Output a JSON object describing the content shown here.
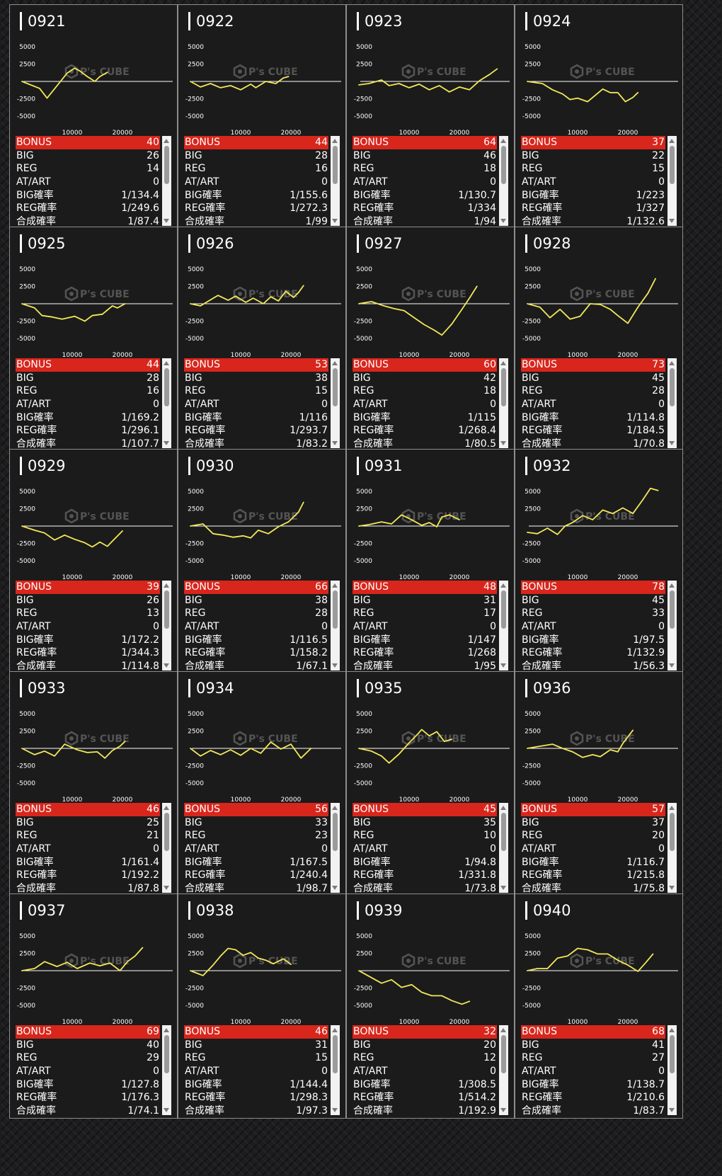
{
  "labels": {
    "bonus": "BONUS",
    "big": "BIG",
    "reg": "REG",
    "at": "AT/ART",
    "big_rate": "BIG確率",
    "reg_rate": "REG確率",
    "total_rate": "合成確率"
  },
  "watermark": "P's CUBE",
  "colors": {
    "line": "#f3e85a",
    "bonus_bar": "#d8261c",
    "panel": "#1b1b1b",
    "border": "#8d8d8d"
  },
  "chart_data": [
    {
      "type": "line",
      "title": "0921",
      "yticks": [
        5000,
        2500,
        -2500,
        -5000
      ],
      "xticks": [
        10000,
        20000
      ],
      "ylim": [
        -6500,
        6500
      ],
      "xlim": [
        0,
        30000
      ],
      "x": [
        0,
        3500,
        5000,
        7000,
        9000,
        10500,
        11500,
        13000,
        14500,
        15500,
        17000
      ],
      "y": [
        0,
        -1000,
        -2400,
        -600,
        1200,
        1900,
        1500,
        700,
        0,
        700,
        1300
      ]
    },
    {
      "type": "line",
      "title": "0922",
      "yticks": [
        5000,
        2500,
        -2500,
        -5000
      ],
      "xticks": [
        10000,
        20000
      ],
      "ylim": [
        -6500,
        6500
      ],
      "xlim": [
        0,
        30000
      ],
      "x": [
        0,
        2000,
        4000,
        6000,
        8000,
        10000,
        12000,
        13000,
        15000,
        17000,
        18500,
        19500
      ],
      "y": [
        0,
        -800,
        -300,
        -900,
        -600,
        -1200,
        -400,
        -900,
        0,
        -300,
        500,
        700
      ]
    },
    {
      "type": "line",
      "title": "0923",
      "yticks": [
        5000,
        2500,
        -2500,
        -5000
      ],
      "xticks": [
        10000,
        20000
      ],
      "ylim": [
        -6500,
        6500
      ],
      "xlim": [
        0,
        30000
      ],
      "x": [
        0,
        2000,
        4500,
        6000,
        8000,
        10000,
        12000,
        14000,
        16000,
        18000,
        20000,
        22000,
        24000,
        26000,
        27500
      ],
      "y": [
        -500,
        -300,
        200,
        -600,
        -300,
        -900,
        -400,
        -1200,
        -600,
        -1500,
        -800,
        -1200,
        100,
        1000,
        1800
      ]
    },
    {
      "type": "line",
      "title": "0924",
      "yticks": [
        5000,
        2500,
        -2500,
        -5000
      ],
      "xticks": [
        10000,
        20000
      ],
      "ylim": [
        -6500,
        6500
      ],
      "xlim": [
        0,
        30000
      ],
      "x": [
        0,
        3000,
        5000,
        7000,
        8500,
        10000,
        12000,
        13500,
        15000,
        16500,
        18000,
        19500,
        21000,
        22000
      ],
      "y": [
        0,
        -300,
        -1200,
        -1800,
        -2600,
        -2400,
        -2900,
        -2000,
        -1100,
        -1600,
        -1600,
        -2900,
        -2300,
        -1600
      ]
    },
    {
      "type": "line",
      "title": "0925",
      "yticks": [
        5000,
        2500,
        -2500,
        -5000
      ],
      "xticks": [
        10000,
        20000
      ],
      "ylim": [
        -6500,
        6500
      ],
      "xlim": [
        0,
        30000
      ],
      "x": [
        0,
        2500,
        4000,
        6000,
        8000,
        10500,
        12500,
        14000,
        16000,
        18000,
        19000,
        20500
      ],
      "y": [
        0,
        -600,
        -1700,
        -1900,
        -2200,
        -1800,
        -2500,
        -1700,
        -1500,
        -300,
        -600,
        0
      ]
    },
    {
      "type": "line",
      "title": "0926",
      "yticks": [
        5000,
        2500,
        -2500,
        -5000
      ],
      "xticks": [
        10000,
        20000
      ],
      "ylim": [
        -6500,
        6500
      ],
      "xlim": [
        0,
        30000
      ],
      "x": [
        0,
        2000,
        5500,
        7500,
        9000,
        11000,
        12500,
        14500,
        16000,
        17500,
        19000,
        20500,
        21500,
        22500
      ],
      "y": [
        0,
        -300,
        1200,
        500,
        1100,
        200,
        800,
        0,
        1000,
        400,
        1800,
        900,
        1600,
        2600
      ]
    },
    {
      "type": "line",
      "title": "0927",
      "yticks": [
        5000,
        2500,
        -2500,
        -5000
      ],
      "xticks": [
        10000,
        20000
      ],
      "ylim": [
        -6500,
        6500
      ],
      "xlim": [
        0,
        30000
      ],
      "x": [
        0,
        2500,
        5000,
        7000,
        9000,
        11000,
        13000,
        15000,
        16500,
        18500,
        20500,
        22000,
        23500
      ],
      "y": [
        0,
        300,
        -300,
        -700,
        -1000,
        -2000,
        -3000,
        -3800,
        -4500,
        -2900,
        -800,
        800,
        2500
      ]
    },
    {
      "type": "line",
      "title": "0928",
      "yticks": [
        5000,
        2500,
        -2500,
        -5000
      ],
      "xticks": [
        10000,
        20000
      ],
      "ylim": [
        -6500,
        6500
      ],
      "xlim": [
        0,
        30000
      ],
      "x": [
        0,
        2500,
        4500,
        6500,
        8500,
        10500,
        12500,
        14500,
        16500,
        18000,
        20000,
        22000,
        24000,
        25500
      ],
      "y": [
        0,
        -500,
        -2000,
        -800,
        -2200,
        -1800,
        0,
        -100,
        -800,
        -1700,
        -2800,
        -500,
        1500,
        3600
      ]
    },
    {
      "type": "line",
      "title": "0929",
      "yticks": [
        5000,
        2500,
        -2500,
        -5000
      ],
      "xticks": [
        10000,
        20000
      ],
      "ylim": [
        -6500,
        6500
      ],
      "xlim": [
        0,
        30000
      ],
      "x": [
        0,
        2500,
        4500,
        6500,
        8500,
        10500,
        12500,
        14000,
        15500,
        17000,
        18500,
        20000
      ],
      "y": [
        0,
        -600,
        -1000,
        -2000,
        -1300,
        -1900,
        -2400,
        -3000,
        -2300,
        -2900,
        -1800,
        -700
      ]
    },
    {
      "type": "line",
      "title": "0930",
      "yticks": [
        5000,
        2500,
        -2500,
        -5000
      ],
      "xticks": [
        10000,
        20000
      ],
      "ylim": [
        -6500,
        6500
      ],
      "xlim": [
        0,
        30000
      ],
      "x": [
        0,
        2500,
        4500,
        6500,
        8500,
        10500,
        12000,
        13500,
        15500,
        17500,
        19500,
        21500,
        22500
      ],
      "y": [
        0,
        300,
        -1100,
        -1300,
        -1600,
        -1400,
        -1700,
        -600,
        -1100,
        -100,
        600,
        2000,
        3400
      ]
    },
    {
      "type": "line",
      "title": "0931",
      "yticks": [
        5000,
        2500,
        -2500,
        -5000
      ],
      "xticks": [
        10000,
        20000
      ],
      "ylim": [
        -6500,
        6500
      ],
      "xlim": [
        0,
        30000
      ],
      "x": [
        0,
        2000,
        4500,
        6500,
        8500,
        10500,
        12500,
        14000,
        15500,
        16500,
        18000,
        20000
      ],
      "y": [
        0,
        200,
        600,
        300,
        1600,
        900,
        100,
        500,
        -100,
        1300,
        1600,
        900
      ]
    },
    {
      "type": "line",
      "title": "0932",
      "yticks": [
        5000,
        2500,
        -2500,
        -5000
      ],
      "xticks": [
        10000,
        20000
      ],
      "ylim": [
        -6500,
        6500
      ],
      "xlim": [
        0,
        30000
      ],
      "x": [
        0,
        2000,
        4000,
        6000,
        7500,
        9000,
        11000,
        13000,
        15000,
        17000,
        19000,
        21000,
        23000,
        24500,
        26000
      ],
      "y": [
        -900,
        -1100,
        -300,
        -1200,
        0,
        500,
        1500,
        900,
        2300,
        1800,
        2600,
        1800,
        3800,
        5400,
        5100
      ]
    },
    {
      "type": "line",
      "title": "0933",
      "yticks": [
        5000,
        2500,
        -2500,
        -5000
      ],
      "xticks": [
        10000,
        20000
      ],
      "ylim": [
        -6500,
        6500
      ],
      "xlim": [
        0,
        30000
      ],
      "x": [
        0,
        2500,
        4500,
        6500,
        8500,
        11000,
        13000,
        15000,
        16500,
        18000,
        19500,
        20500
      ],
      "y": [
        0,
        -900,
        -400,
        -1100,
        600,
        -200,
        -600,
        -500,
        -1400,
        -300,
        300,
        1000
      ]
    },
    {
      "type": "line",
      "title": "0934",
      "yticks": [
        5000,
        2500,
        -2500,
        -5000
      ],
      "xticks": [
        10000,
        20000
      ],
      "ylim": [
        -6500,
        6500
      ],
      "xlim": [
        0,
        30000
      ],
      "x": [
        0,
        2000,
        4000,
        6000,
        8000,
        10000,
        12000,
        14000,
        16000,
        18000,
        20000,
        22000,
        24000
      ],
      "y": [
        0,
        -1100,
        -300,
        -900,
        -200,
        -1000,
        0,
        -700,
        900,
        -100,
        600,
        -1400,
        0
      ]
    },
    {
      "type": "line",
      "title": "0935",
      "yticks": [
        5000,
        2500,
        -2500,
        -5000
      ],
      "xticks": [
        10000,
        20000
      ],
      "ylim": [
        -6500,
        6500
      ],
      "xlim": [
        0,
        30000
      ],
      "x": [
        0,
        2500,
        4500,
        6000,
        8000,
        10000,
        11500,
        12500,
        14000,
        15500,
        17000,
        18500
      ],
      "y": [
        0,
        -400,
        -1100,
        -2100,
        -800,
        800,
        1900,
        2700,
        1800,
        2400,
        1000,
        1300
      ]
    },
    {
      "type": "line",
      "title": "0936",
      "yticks": [
        5000,
        2500,
        -2500,
        -5000
      ],
      "xticks": [
        10000,
        20000
      ],
      "ylim": [
        -6500,
        6500
      ],
      "xlim": [
        0,
        30000
      ],
      "x": [
        0,
        2500,
        5000,
        7000,
        9000,
        11000,
        13000,
        14500,
        16500,
        18000,
        19000,
        21000
      ],
      "y": [
        0,
        300,
        600,
        0,
        -500,
        -1300,
        -900,
        -1200,
        -200,
        -500,
        700,
        2600
      ]
    },
    {
      "type": "line",
      "title": "0937",
      "yticks": [
        5000,
        2500,
        -2500,
        -5000
      ],
      "xticks": [
        10000,
        20000
      ],
      "ylim": [
        -6500,
        6500
      ],
      "xlim": [
        0,
        30000
      ],
      "x": [
        0,
        2500,
        4500,
        7000,
        9000,
        11000,
        13500,
        15500,
        17500,
        19500,
        21000,
        22500,
        24000
      ],
      "y": [
        0,
        300,
        1300,
        600,
        1200,
        300,
        1100,
        700,
        1100,
        0,
        1300,
        2100,
        3300
      ]
    },
    {
      "type": "line",
      "title": "0938",
      "yticks": [
        5000,
        2500,
        -2500,
        -5000
      ],
      "xticks": [
        10000,
        20000
      ],
      "ylim": [
        -6500,
        6500
      ],
      "xlim": [
        0,
        30000
      ],
      "x": [
        0,
        2500,
        4500,
        6000,
        7500,
        9000,
        10500,
        12000,
        13500,
        15000,
        16500,
        18500,
        20000
      ],
      "y": [
        0,
        -700,
        800,
        2100,
        3200,
        3000,
        2200,
        2600,
        1800,
        1500,
        1000,
        1700,
        900
      ]
    },
    {
      "type": "line",
      "title": "0939",
      "yticks": [
        5000,
        2500,
        -2500,
        -5000
      ],
      "xticks": [
        10000,
        20000
      ],
      "ylim": [
        -6500,
        6500
      ],
      "xlim": [
        0,
        30000
      ],
      "x": [
        0,
        2500,
        4500,
        6500,
        8500,
        10500,
        12500,
        14500,
        16500,
        18500,
        20500,
        22000
      ],
      "y": [
        0,
        -1000,
        -1800,
        -1300,
        -2400,
        -2000,
        -3100,
        -3600,
        -3600,
        -4300,
        -4800,
        -4400
      ]
    },
    {
      "type": "line",
      "title": "0940",
      "yticks": [
        5000,
        2500,
        -2500,
        -5000
      ],
      "xticks": [
        10000,
        20000
      ],
      "ylim": [
        -6500,
        6500
      ],
      "xlim": [
        0,
        30000
      ],
      "x": [
        0,
        2000,
        4000,
        6000,
        8000,
        10000,
        12000,
        14000,
        16000,
        18000,
        20000,
        22000,
        23500,
        25000
      ],
      "y": [
        0,
        300,
        300,
        1800,
        2100,
        3200,
        3000,
        2400,
        2400,
        1500,
        800,
        -100,
        1100,
        2400
      ]
    }
  ],
  "stats": [
    {
      "bonus": "40",
      "big": "26",
      "reg": "14",
      "at": "0",
      "big_rate": "1/134.4",
      "reg_rate": "1/249.6",
      "total_rate": "1/87.4"
    },
    {
      "bonus": "44",
      "big": "28",
      "reg": "16",
      "at": "0",
      "big_rate": "1/155.6",
      "reg_rate": "1/272.3",
      "total_rate": "1/99"
    },
    {
      "bonus": "64",
      "big": "46",
      "reg": "18",
      "at": "0",
      "big_rate": "1/130.7",
      "reg_rate": "1/334",
      "total_rate": "1/94"
    },
    {
      "bonus": "37",
      "big": "22",
      "reg": "15",
      "at": "0",
      "big_rate": "1/223",
      "reg_rate": "1/327",
      "total_rate": "1/132.6"
    },
    {
      "bonus": "44",
      "big": "28",
      "reg": "16",
      "at": "0",
      "big_rate": "1/169.2",
      "reg_rate": "1/296.1",
      "total_rate": "1/107.7"
    },
    {
      "bonus": "53",
      "big": "38",
      "reg": "15",
      "at": "0",
      "big_rate": "1/116",
      "reg_rate": "1/293.7",
      "total_rate": "1/83.2"
    },
    {
      "bonus": "60",
      "big": "42",
      "reg": "18",
      "at": "0",
      "big_rate": "1/115",
      "reg_rate": "1/268.4",
      "total_rate": "1/80.5"
    },
    {
      "bonus": "73",
      "big": "45",
      "reg": "28",
      "at": "0",
      "big_rate": "1/114.8",
      "reg_rate": "1/184.5",
      "total_rate": "1/70.8"
    },
    {
      "bonus": "39",
      "big": "26",
      "reg": "13",
      "at": "0",
      "big_rate": "1/172.2",
      "reg_rate": "1/344.3",
      "total_rate": "1/114.8"
    },
    {
      "bonus": "66",
      "big": "38",
      "reg": "28",
      "at": "0",
      "big_rate": "1/116.5",
      "reg_rate": "1/158.2",
      "total_rate": "1/67.1"
    },
    {
      "bonus": "48",
      "big": "31",
      "reg": "17",
      "at": "0",
      "big_rate": "1/147",
      "reg_rate": "1/268",
      "total_rate": "1/95"
    },
    {
      "bonus": "78",
      "big": "45",
      "reg": "33",
      "at": "0",
      "big_rate": "1/97.5",
      "reg_rate": "1/132.9",
      "total_rate": "1/56.3"
    },
    {
      "bonus": "46",
      "big": "25",
      "reg": "21",
      "at": "0",
      "big_rate": "1/161.4",
      "reg_rate": "1/192.2",
      "total_rate": "1/87.8"
    },
    {
      "bonus": "56",
      "big": "33",
      "reg": "23",
      "at": "0",
      "big_rate": "1/167.5",
      "reg_rate": "1/240.4",
      "total_rate": "1/98.7"
    },
    {
      "bonus": "45",
      "big": "35",
      "reg": "10",
      "at": "0",
      "big_rate": "1/94.8",
      "reg_rate": "1/331.8",
      "total_rate": "1/73.8"
    },
    {
      "bonus": "57",
      "big": "37",
      "reg": "20",
      "at": "0",
      "big_rate": "1/116.7",
      "reg_rate": "1/215.8",
      "total_rate": "1/75.8"
    },
    {
      "bonus": "69",
      "big": "40",
      "reg": "29",
      "at": "0",
      "big_rate": "1/127.8",
      "reg_rate": "1/176.3",
      "total_rate": "1/74.1"
    },
    {
      "bonus": "46",
      "big": "31",
      "reg": "15",
      "at": "0",
      "big_rate": "1/144.4",
      "reg_rate": "1/298.3",
      "total_rate": "1/97.3"
    },
    {
      "bonus": "32",
      "big": "20",
      "reg": "12",
      "at": "0",
      "big_rate": "1/308.5",
      "reg_rate": "1/514.2",
      "total_rate": "1/192.9"
    },
    {
      "bonus": "68",
      "big": "41",
      "reg": "27",
      "at": "0",
      "big_rate": "1/138.7",
      "reg_rate": "1/210.6",
      "total_rate": "1/83.7"
    }
  ]
}
